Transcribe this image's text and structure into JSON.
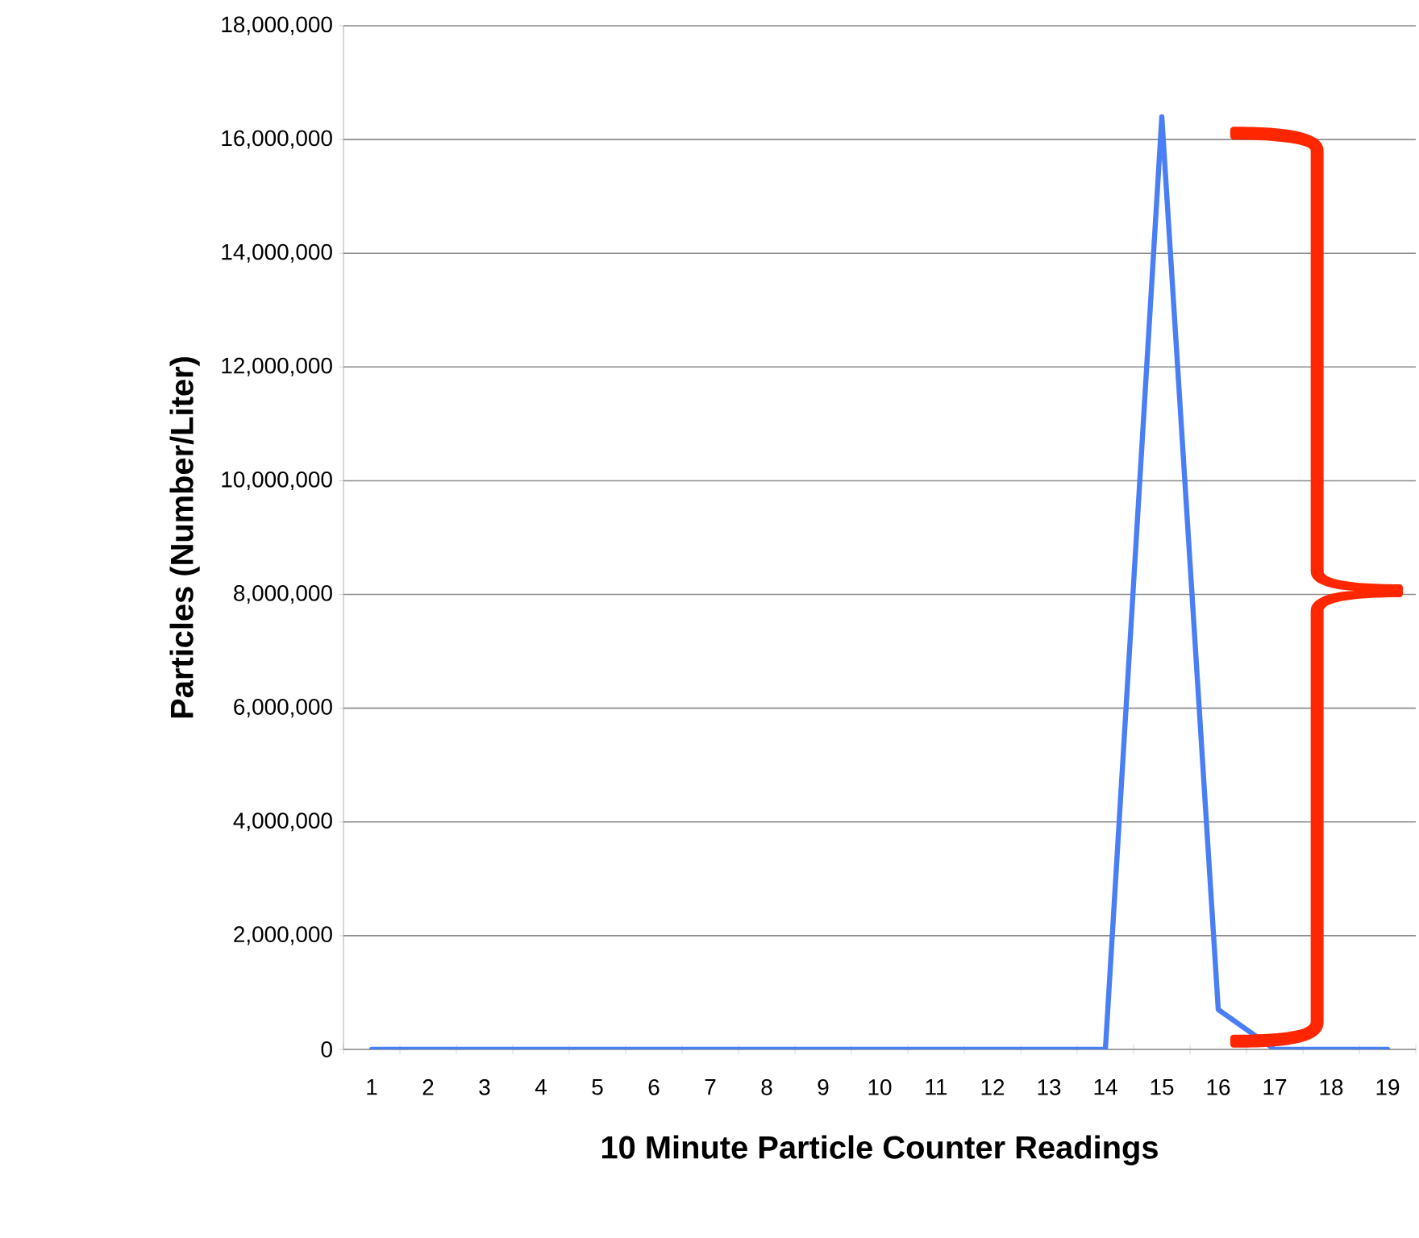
{
  "chart_data": {
    "type": "line",
    "xlabel": "10 Minute Particle Counter Readings",
    "ylabel": "Particles (Number/Liter)",
    "categories": [
      "1",
      "2",
      "3",
      "4",
      "5",
      "6",
      "7",
      "8",
      "9",
      "10",
      "11",
      "12",
      "13",
      "14",
      "15",
      "16",
      "17",
      "18",
      "19"
    ],
    "series": [
      {
        "color": "#4a7ef5",
        "values": [
          0,
          0,
          0,
          0,
          0,
          0,
          0,
          0,
          0,
          0,
          0,
          0,
          0,
          0,
          16400000,
          700000,
          0,
          0,
          0
        ]
      }
    ],
    "ylim": [
      0,
      18000000
    ],
    "yticks": [
      {
        "value": 0,
        "label": "0"
      },
      {
        "value": 2000000,
        "label": "2,000,000"
      },
      {
        "value": 4000000,
        "label": "4,000,000"
      },
      {
        "value": 6000000,
        "label": "6,000,000"
      },
      {
        "value": 8000000,
        "label": "8,000,000"
      },
      {
        "value": 10000000,
        "label": "10,000,000"
      },
      {
        "value": 12000000,
        "label": "12,000,000"
      },
      {
        "value": 14000000,
        "label": "14,000,000"
      },
      {
        "value": 16000000,
        "label": "16,000,000"
      },
      {
        "value": 18000000,
        "label": "18,000,000"
      }
    ],
    "grid": "y",
    "marker": "none",
    "line_style": "solid"
  }
}
